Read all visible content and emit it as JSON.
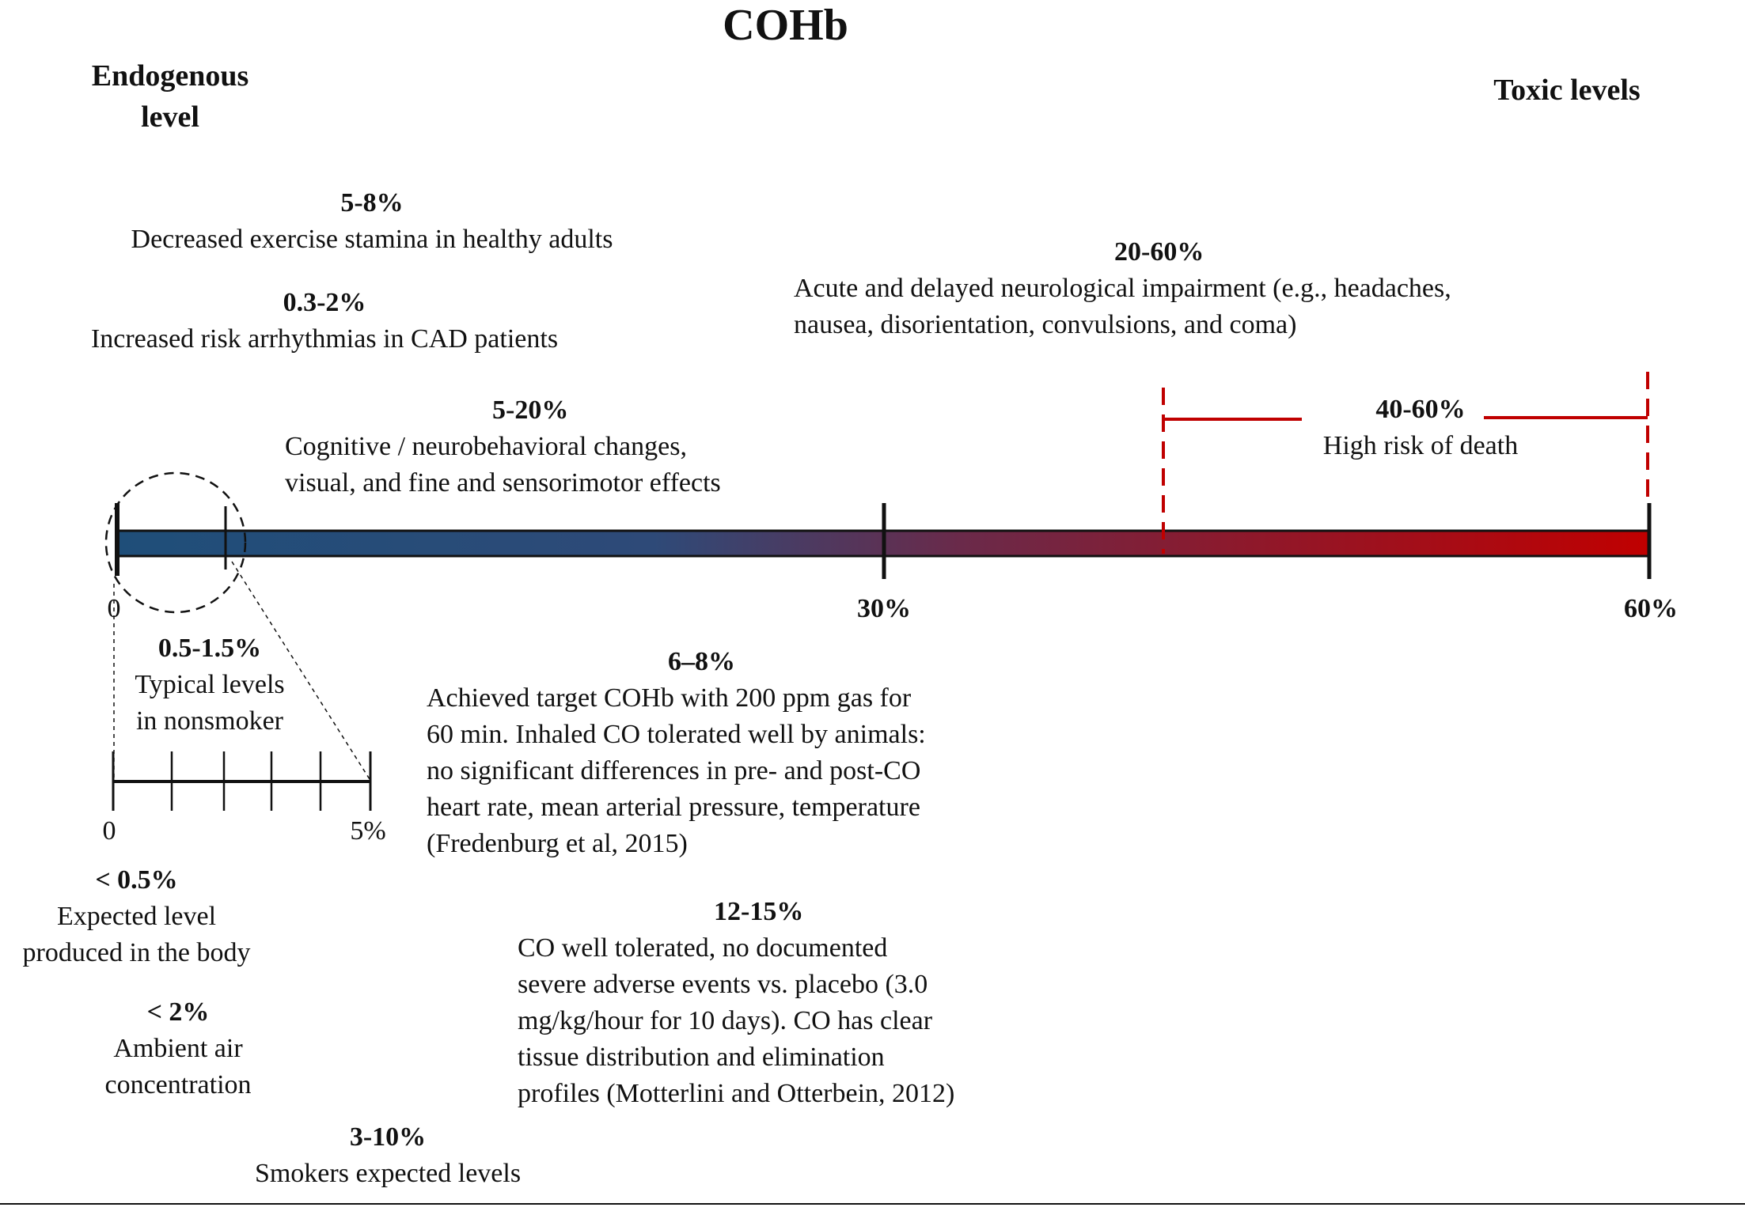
{
  "title": "COHb",
  "headers": {
    "endogenous_line1": "Endogenous",
    "endogenous_line2": "level",
    "toxic": "Toxic levels"
  },
  "scale": {
    "min_label": "0",
    "mid_label": "30%",
    "max_label": "60%",
    "min": 0,
    "mid": 30,
    "max": 60,
    "zoom_min_label": "0",
    "zoom_max_label": "5%",
    "zoom_min": 0,
    "zoom_max": 5,
    "color_start": "#1f4e79",
    "color_end": "#c00000"
  },
  "annotations": {
    "exercise": {
      "range": "5-8%",
      "lines": [
        "Decreased exercise stamina in healthy adults"
      ]
    },
    "arrhythmia": {
      "range": "0.3-2%",
      "lines": [
        "Increased risk arrhythmias in CAD patients"
      ]
    },
    "cognitive": {
      "range": "5-20%",
      "lines": [
        "Cognitive / neurobehavioral changes,",
        "visual, and fine and sensorimotor effects"
      ]
    },
    "neuro": {
      "range": "20-60%",
      "lines": [
        "Acute and delayed neurological impairment (e.g., headaches,",
        "nausea, disorientation, convulsions, and coma)"
      ]
    },
    "death": {
      "range": "40-60%",
      "lines": [
        "High risk of death"
      ]
    },
    "nonsmoker": {
      "range": "0.5-1.5%",
      "lines": [
        "Typical levels",
        "in nonsmoker"
      ]
    },
    "target": {
      "range": "6–8%",
      "lines": [
        "Achieved target COHb with 200 ppm gas for",
        "60 min. Inhaled CO tolerated well by animals:",
        "no significant differences in pre- and post-CO",
        "heart rate, mean arterial pressure, temperature",
        "(Fredenburg et al, 2015)"
      ]
    },
    "expected": {
      "range": "< 0.5%",
      "lines": [
        "Expected level",
        "produced in the body"
      ]
    },
    "tolerated": {
      "range": "12-15%",
      "lines": [
        "CO well tolerated, no documented",
        "severe adverse events vs. placebo (3.0",
        "mg/kg/hour for 10 days). CO has clear",
        "tissue distribution and elimination",
        "profiles  (Motterlini and Otterbein, 2012)"
      ]
    },
    "ambient": {
      "range": "< 2%",
      "lines": [
        "Ambient air",
        "concentration"
      ]
    },
    "smokers": {
      "range": "3-10%",
      "lines": [
        "Smokers expected levels"
      ]
    }
  },
  "colors": {
    "danger_marker": "#c00000"
  }
}
